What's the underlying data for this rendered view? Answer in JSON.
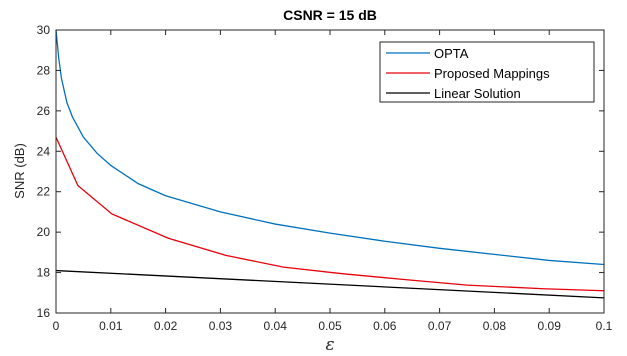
{
  "chart_data": {
    "type": "line",
    "title": "CSNR = 15 dB",
    "xlabel": "ε",
    "ylabel": "SNR (dB)",
    "xlim": [
      0,
      0.1
    ],
    "ylim": [
      16,
      30
    ],
    "xticks": [
      0,
      0.01,
      0.02,
      0.03,
      0.04,
      0.05,
      0.06,
      0.07,
      0.08,
      0.09,
      0.1
    ],
    "xtick_labels": [
      "0",
      "0.01",
      "0.02",
      "0.03",
      "0.04",
      "0.05",
      "0.06",
      "0.07",
      "0.08",
      "0.09",
      "0.1"
    ],
    "yticks": [
      16,
      18,
      20,
      22,
      24,
      26,
      28,
      30
    ],
    "ytick_labels": [
      "16",
      "18",
      "20",
      "22",
      "24",
      "26",
      "28",
      "30"
    ],
    "grid": false,
    "legend_position": "top-right",
    "series": [
      {
        "name": "OPTA",
        "color": "#0072bd",
        "x": [
          0,
          0.0005,
          0.001,
          0.002,
          0.003,
          0.005,
          0.0075,
          0.01,
          0.015,
          0.02,
          0.03,
          0.04,
          0.05,
          0.06,
          0.07,
          0.08,
          0.09,
          0.1
        ],
        "y": [
          30,
          28.6,
          27.6,
          26.4,
          25.7,
          24.7,
          23.9,
          23.3,
          22.4,
          21.8,
          21.0,
          20.4,
          19.95,
          19.55,
          19.2,
          18.9,
          18.6,
          18.4
        ]
      },
      {
        "name": "Proposed Mappings",
        "color": "#e8000b",
        "x": [
          0,
          0.004,
          0.0102,
          0.0205,
          0.031,
          0.0415,
          0.052,
          0.063,
          0.075,
          0.089,
          0.1
        ],
        "y": [
          24.7,
          22.3,
          20.9,
          19.7,
          18.85,
          18.27,
          17.95,
          17.67,
          17.38,
          17.2,
          17.1
        ]
      },
      {
        "name": "Linear Solution",
        "color": "#000000",
        "x": [
          0,
          0.1
        ],
        "y": [
          18.1,
          16.75
        ]
      }
    ]
  }
}
